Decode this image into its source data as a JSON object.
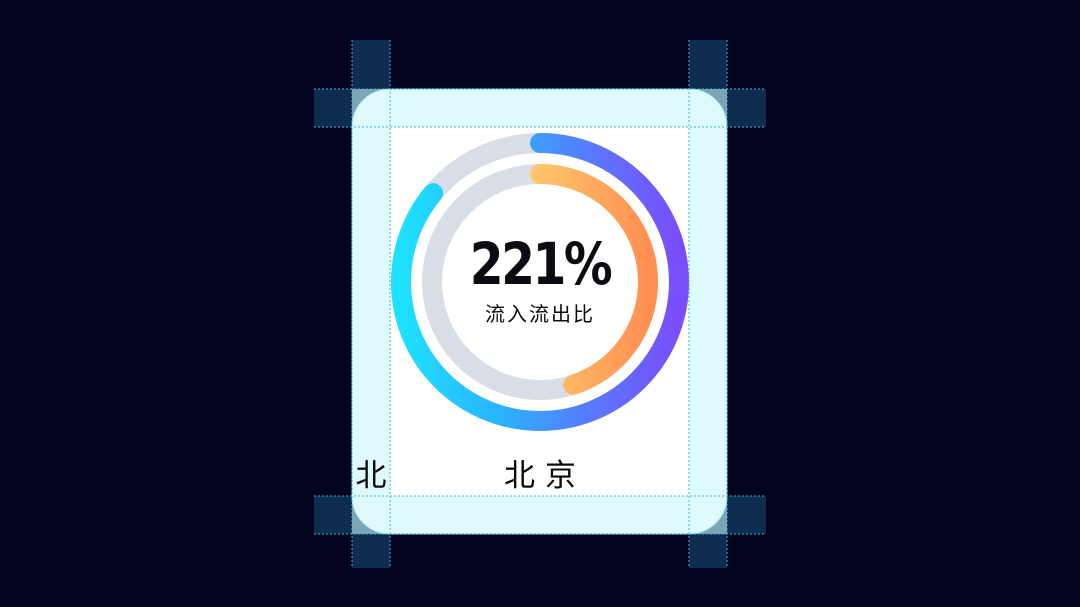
{
  "metric": {
    "value_text": "221%",
    "caption": "流入流出比"
  },
  "city": {
    "name": "北京",
    "edge_glyph": "北"
  },
  "rings": {
    "outer_fraction": 0.86,
    "inner_fraction": 0.45
  },
  "colors": {
    "background": "#03031f",
    "card": "#ffffff",
    "guide_column": "#0d2c4e",
    "guide_overlay": "#c9f6fb",
    "track": "#d9dee6",
    "outer_gradient": [
      "#1ee1ff",
      "#2ab4ff",
      "#5b76ff",
      "#7a4dfb"
    ],
    "inner_gradient": [
      "#ffe89a",
      "#ffc46a",
      "#ff8f52"
    ]
  }
}
